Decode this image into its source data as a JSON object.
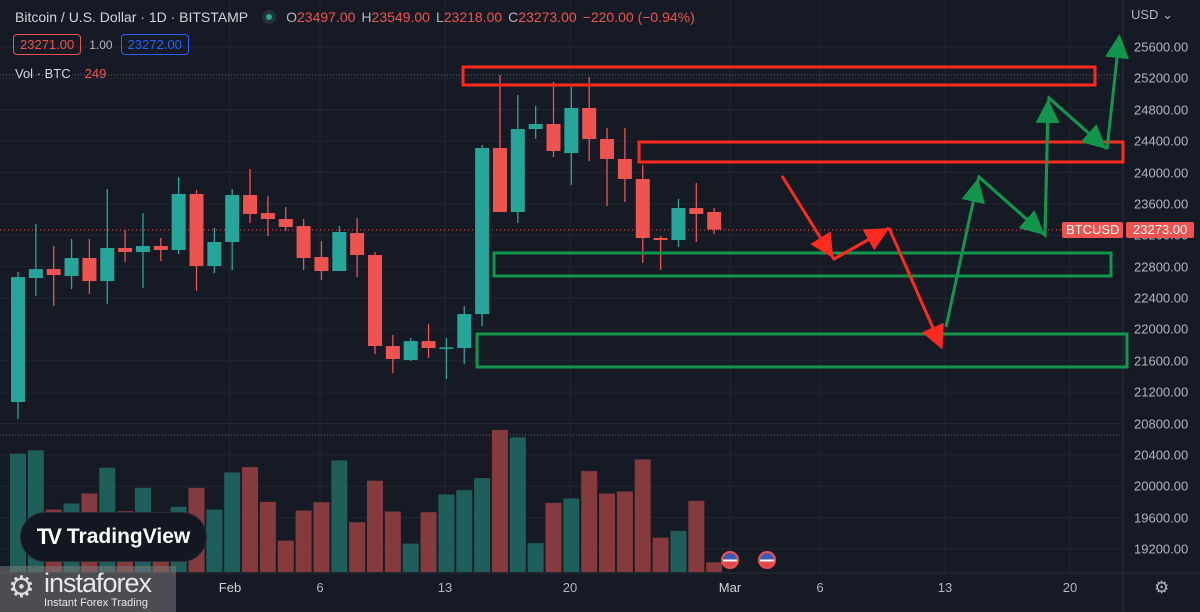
{
  "header": {
    "title": "Bitcoin / U.S. Dollar · 1D · BITSTAMP",
    "ohlc": {
      "o_label": "O",
      "o": "23497.00",
      "h_label": "H",
      "h": "23549.00",
      "l_label": "L",
      "l": "23218.00",
      "c_label": "C",
      "c": "23273.00",
      "change": "−220.00 (−0.94%)"
    },
    "bid": "23271.00",
    "spread": "1.00",
    "ask": "23272.00",
    "volume_label": "Vol · BTC",
    "volume_value": "249"
  },
  "axis": {
    "currency": "USD",
    "price_labels": [
      "25600.00",
      "25200.00",
      "24800.00",
      "24400.00",
      "24000.00",
      "23600.00",
      "23200.00",
      "22800.00",
      "22400.00",
      "22000.00",
      "21600.00",
      "21200.00",
      "20800.00",
      "20400.00",
      "20000.00",
      "19600.00",
      "19200.00"
    ],
    "symbol_tag": "BTCUSD",
    "last_price_tag": "23273.00",
    "date_labels": [
      "Feb",
      "6",
      "13",
      "20",
      "Mar",
      "6",
      "13",
      "20"
    ]
  },
  "branding": {
    "tradingview": "TradingView",
    "instaforex": "instaforex",
    "instaforex_tagline": "Instant Forex Trading"
  },
  "colors": {
    "up": "#26a69a",
    "down": "#ef5350",
    "up_vol": "#1f5f5b",
    "down_vol": "#853a3d",
    "annot_red": "#ff2a1f",
    "annot_green": "#12964e",
    "bg": "#161a25"
  },
  "chart_data": {
    "type": "candlestick",
    "symbol": "BTCUSD",
    "interval": "1D",
    "ylim": [
      19200,
      25600
    ],
    "candles": [
      [
        21074,
        22731,
        20857,
        22667
      ],
      [
        22655,
        23343,
        22425,
        22769
      ],
      [
        22769,
        23063,
        22297,
        22693
      ],
      [
        22680,
        23152,
        22514,
        22910
      ],
      [
        22910,
        23152,
        22451,
        22616
      ],
      [
        22616,
        23789,
        22323,
        23037
      ],
      [
        23037,
        23266,
        22859,
        22986
      ],
      [
        22986,
        23483,
        22527,
        23063
      ],
      [
        23063,
        23165,
        22871,
        23012
      ],
      [
        23012,
        23942,
        22961,
        23726
      ],
      [
        23726,
        23777,
        22489,
        22808
      ],
      [
        22808,
        23292,
        22718,
        23114
      ],
      [
        23114,
        23789,
        22757,
        23713
      ],
      [
        23713,
        24044,
        23356,
        23471
      ],
      [
        23483,
        23700,
        23190,
        23407
      ],
      [
        23407,
        23560,
        23254,
        23305
      ],
      [
        23318,
        23407,
        22757,
        22910
      ],
      [
        22922,
        23126,
        22629,
        22744
      ],
      [
        22744,
        23318,
        22744,
        23241
      ],
      [
        23228,
        23420,
        22667,
        22948
      ],
      [
        22948,
        22986,
        21685,
        21788
      ],
      [
        21788,
        21928,
        21443,
        21622
      ],
      [
        21609,
        21890,
        21596,
        21851
      ],
      [
        21851,
        22068,
        21635,
        21762
      ],
      [
        21762,
        21890,
        21367,
        21770
      ],
      [
        21762,
        22297,
        21558,
        22195
      ],
      [
        22195,
        24350,
        22042,
        24312
      ],
      [
        24312,
        25243,
        23496,
        23496
      ],
      [
        23496,
        24988,
        23356,
        24554
      ],
      [
        24554,
        24848,
        24427,
        24618
      ],
      [
        24618,
        25154,
        24197,
        24274
      ],
      [
        24248,
        25090,
        23840,
        24822
      ],
      [
        24822,
        25217,
        24146,
        24427
      ],
      [
        24427,
        24567,
        23573,
        24172
      ],
      [
        24172,
        24567,
        23624,
        23917
      ],
      [
        23917,
        24095,
        22846,
        23165
      ],
      [
        23165,
        23190,
        22757,
        23139
      ],
      [
        23139,
        23662,
        23050,
        23547
      ],
      [
        23547,
        23866,
        23114,
        23471
      ],
      [
        23497,
        23549,
        23218,
        23273
      ]
    ],
    "volumes": [
      3044,
      3130,
      1608,
      1763,
      2021,
      2683,
      1565,
      2167,
      1221,
      1677,
      2167,
      1608,
      2563,
      2700,
      1806,
      808,
      1582,
      1797,
      2872,
      1281,
      2348,
      1557,
      731,
      1539,
      1995,
      2107,
      2417,
      3655,
      3466,
      740,
      1780,
      1892,
      2597,
      2021,
      2073,
      2898,
      886,
      1058,
      1832,
      249
    ]
  }
}
